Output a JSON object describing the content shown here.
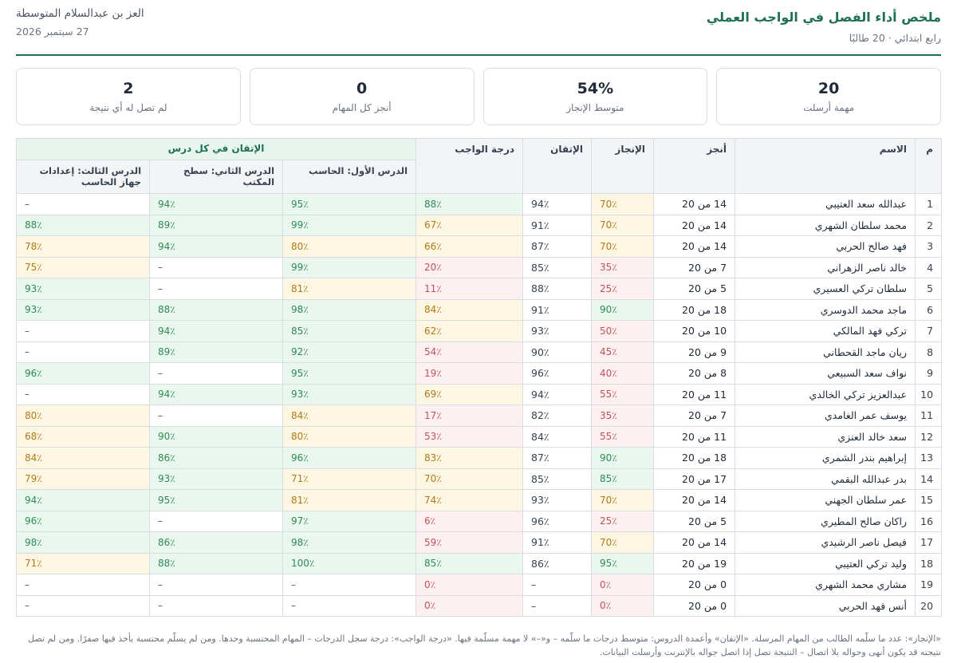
{
  "header": {
    "title": "ملخص أداء الفصل في الواجب العملي",
    "subtitle": "رابع ابتدائي · 20 طالبًا",
    "school": "العز بن عبدالسلام المتوسطة",
    "date": "27 سبتمبر 2026"
  },
  "cards": [
    {
      "value": "20",
      "label": "مهمة أرسلت"
    },
    {
      "value": "54%",
      "label": "متوسط الإنجاز"
    },
    {
      "value": "0",
      "label": "أنجز كل المهام"
    },
    {
      "value": "2",
      "label": "لم تصل له أي نتيجة"
    }
  ],
  "table": {
    "headers": {
      "num": "م",
      "name": "الاسم",
      "done": "أنجز",
      "completion": "الإنجاز",
      "mastery": "الإتقان",
      "homework": "درجة الواجب",
      "lessons_group": "الإتقان في كل درس",
      "lesson1": "الدرس الأول: الحاسب",
      "lesson2": "الدرس الثاني: سطح المكتب",
      "lesson3": "الدرس الثالث: إعدادات جهاز الحاسب"
    },
    "rows": [
      {
        "num": "1",
        "name": "عبدالله سعد العتيبي",
        "done": "14 من 20",
        "completion": "70٪",
        "mastery": "94٪",
        "homework": "88٪",
        "l1": "95٪",
        "l2": "94٪",
        "l3": "–"
      },
      {
        "num": "2",
        "name": "محمد سلطان الشهري",
        "done": "14 من 20",
        "completion": "70٪",
        "mastery": "91٪",
        "homework": "67٪",
        "l1": "99٪",
        "l2": "89٪",
        "l3": "88٪"
      },
      {
        "num": "3",
        "name": "فهد صالح الحربي",
        "done": "14 من 20",
        "completion": "70٪",
        "mastery": "87٪",
        "homework": "66٪",
        "l1": "80٪",
        "l2": "94٪",
        "l3": "78٪"
      },
      {
        "num": "4",
        "name": "خالد ناصر الزهراني",
        "done": "7 من 20",
        "completion": "35٪",
        "mastery": "85٪",
        "homework": "20٪",
        "l1": "99٪",
        "l2": "–",
        "l3": "75٪"
      },
      {
        "num": "5",
        "name": "سلطان تركي العسيري",
        "done": "5 من 20",
        "completion": "25٪",
        "mastery": "88٪",
        "homework": "11٪",
        "l1": "81٪",
        "l2": "–",
        "l3": "93٪"
      },
      {
        "num": "6",
        "name": "ماجد محمد الدوسري",
        "done": "18 من 20",
        "completion": "90٪",
        "mastery": "91٪",
        "homework": "84٪",
        "l1": "98٪",
        "l2": "88٪",
        "l3": "93٪"
      },
      {
        "num": "7",
        "name": "تركي فهد المالكي",
        "done": "10 من 20",
        "completion": "50٪",
        "mastery": "93٪",
        "homework": "62٪",
        "l1": "85٪",
        "l2": "94٪",
        "l3": "–"
      },
      {
        "num": "8",
        "name": "ريان ماجد القحطاني",
        "done": "9 من 20",
        "completion": "45٪",
        "mastery": "90٪",
        "homework": "54٪",
        "l1": "92٪",
        "l2": "89٪",
        "l3": "–"
      },
      {
        "num": "9",
        "name": "نواف سعد السبيعي",
        "done": "8 من 20",
        "completion": "40٪",
        "mastery": "96٪",
        "homework": "19٪",
        "l1": "95٪",
        "l2": "–",
        "l3": "96٪"
      },
      {
        "num": "10",
        "name": "عبدالعزيز تركي الخالدي",
        "done": "11 من 20",
        "completion": "55٪",
        "mastery": "94٪",
        "homework": "69٪",
        "l1": "93٪",
        "l2": "94٪",
        "l3": "–"
      },
      {
        "num": "11",
        "name": "يوسف عمر الغامدي",
        "done": "7 من 20",
        "completion": "35٪",
        "mastery": "82٪",
        "homework": "17٪",
        "l1": "84٪",
        "l2": "–",
        "l3": "80٪"
      },
      {
        "num": "12",
        "name": "سعد خالد العنزي",
        "done": "11 من 20",
        "completion": "55٪",
        "mastery": "84٪",
        "homework": "53٪",
        "l1": "80٪",
        "l2": "90٪",
        "l3": "68٪"
      },
      {
        "num": "13",
        "name": "إبراهيم بندر الشمري",
        "done": "18 من 20",
        "completion": "90٪",
        "mastery": "87٪",
        "homework": "83٪",
        "l1": "96٪",
        "l2": "86٪",
        "l3": "84٪"
      },
      {
        "num": "14",
        "name": "بدر عبدالله البقمي",
        "done": "17 من 20",
        "completion": "85٪",
        "mastery": "85٪",
        "homework": "70٪",
        "l1": "71٪",
        "l2": "93٪",
        "l3": "79٪"
      },
      {
        "num": "15",
        "name": "عمر سلطان الجهني",
        "done": "14 من 20",
        "completion": "70٪",
        "mastery": "93٪",
        "homework": "74٪",
        "l1": "81٪",
        "l2": "95٪",
        "l3": "94٪"
      },
      {
        "num": "16",
        "name": "راكان صالح المطيري",
        "done": "5 من 20",
        "completion": "25٪",
        "mastery": "96٪",
        "homework": "6٪",
        "l1": "97٪",
        "l2": "–",
        "l3": "96٪"
      },
      {
        "num": "17",
        "name": "فيصل ناصر الرشيدي",
        "done": "14 من 20",
        "completion": "70٪",
        "mastery": "91٪",
        "homework": "59٪",
        "l1": "98٪",
        "l2": "86٪",
        "l3": "98٪"
      },
      {
        "num": "18",
        "name": "وليد تركي العتيبي",
        "done": "19 من 20",
        "completion": "95٪",
        "mastery": "86٪",
        "homework": "85٪",
        "l1": "100٪",
        "l2": "88٪",
        "l3": "71٪"
      },
      {
        "num": "19",
        "name": "مشاري محمد الشهري",
        "done": "0 من 20",
        "completion": "0٪",
        "mastery": "–",
        "homework": "0٪",
        "l1": "–",
        "l2": "–",
        "l3": "–"
      },
      {
        "num": "20",
        "name": "أنس فهد الحربي",
        "done": "0 من 20",
        "completion": "0٪",
        "mastery": "–",
        "homework": "0٪",
        "l1": "–",
        "l2": "–",
        "l3": "–"
      }
    ]
  },
  "footnote": "«الإنجاز»: عدد ما سلّمه الطالب من المهام المرسلة. «الإتقان» وأعمدة الدروس: متوسط درجات ما سلّمه – و«–» لا مهمة مسلّمة فيها. «درجة الواجب»: درجة سجل الدرجات – المهام المحتسبة وحدها. ومن لم يسلّم محتسبة يأخذ فيها صفرًا. ومن لم تصل نتيجته قد يكون أنهى وجواله بلا اتصال – النتيجة تصل إذا اتصل جواله بالإنترنت وأرسلت البيانات.",
  "colors": {
    "good": "#2f8a55",
    "warn": "#b07a16",
    "bad": "#c2525a",
    "accent": "#1f6f57"
  }
}
